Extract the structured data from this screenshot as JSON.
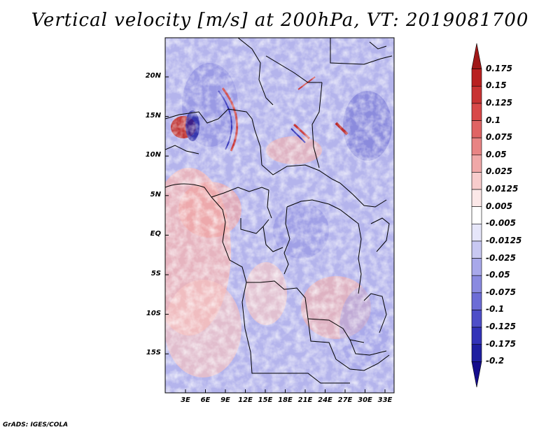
{
  "title": "Vertical velocity [m/s] at 200hPa, VT: 2019081700",
  "footer": "GrADS: IGES/COLA",
  "map": {
    "lat_labels": [
      "20N",
      "15N",
      "10N",
      "5N",
      "EQ",
      "5S",
      "10S",
      "15S"
    ],
    "lon_labels": [
      "3E",
      "6E",
      "9E",
      "12E",
      "15E",
      "18E",
      "21E",
      "24E",
      "27E",
      "30E",
      "33E"
    ]
  },
  "colorbar": {
    "labels": [
      "0.175",
      "0.15",
      "0.125",
      "0.1",
      "0.075",
      "0.05",
      "0.025",
      "0.0125",
      "0.005",
      "-0.005",
      "-0.0125",
      "-0.025",
      "-0.05",
      "-0.075",
      "-0.1",
      "-0.125",
      "-0.175",
      "-0.2"
    ],
    "colors": [
      "#a01818",
      "#b82020",
      "#c83232",
      "#d84848",
      "#e06464",
      "#e88484",
      "#f0a8a8",
      "#f8cccc",
      "#fce8e8",
      "#ffffff",
      "#e6e6fa",
      "#c8c8f2",
      "#a8a8ea",
      "#8a8ae0",
      "#6c6cd6",
      "#4e4ec8",
      "#3232b8",
      "#1e1ea0",
      "#140c8c"
    ]
  }
}
